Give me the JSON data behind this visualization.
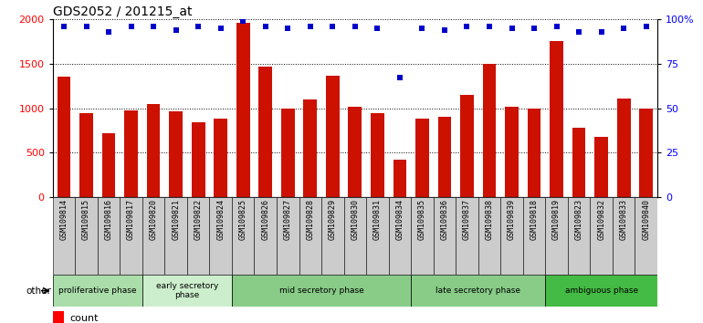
{
  "title": "GDS2052 / 201215_at",
  "samples": [
    "GSM109814",
    "GSM109815",
    "GSM109816",
    "GSM109817",
    "GSM109820",
    "GSM109821",
    "GSM109822",
    "GSM109824",
    "GSM109825",
    "GSM109826",
    "GSM109827",
    "GSM109828",
    "GSM109829",
    "GSM109830",
    "GSM109831",
    "GSM109834",
    "GSM109835",
    "GSM109836",
    "GSM109837",
    "GSM109838",
    "GSM109839",
    "GSM109818",
    "GSM109819",
    "GSM109823",
    "GSM109832",
    "GSM109833",
    "GSM109840"
  ],
  "counts": [
    1360,
    940,
    720,
    980,
    1050,
    960,
    840,
    880,
    1960,
    1470,
    1000,
    1100,
    1370,
    1020,
    940,
    420,
    880,
    900,
    1150,
    1500,
    1020,
    1000,
    1760,
    780,
    680,
    1110,
    1000
  ],
  "percentile_ranks": [
    96,
    96,
    93,
    96,
    96,
    94,
    96,
    95,
    99,
    96,
    95,
    96,
    96,
    96,
    95,
    67,
    95,
    94,
    96,
    96,
    95,
    95,
    96,
    93,
    93,
    95,
    96
  ],
  "phases": [
    {
      "label": "proliferative phase",
      "start": 0,
      "end": 4,
      "color": "#aaddaa"
    },
    {
      "label": "early secretory\nphase",
      "start": 4,
      "end": 8,
      "color": "#cceecc"
    },
    {
      "label": "mid secretory phase",
      "start": 8,
      "end": 16,
      "color": "#88cc88"
    },
    {
      "label": "late secretory phase",
      "start": 16,
      "end": 22,
      "color": "#88cc88"
    },
    {
      "label": "ambiguous phase",
      "start": 22,
      "end": 27,
      "color": "#44bb44"
    }
  ],
  "bar_color": "#CC1100",
  "dot_color": "#0000CC",
  "left_ylim": [
    0,
    2000
  ],
  "right_ylim": [
    0,
    100
  ],
  "left_yticks": [
    0,
    500,
    1000,
    1500,
    2000
  ],
  "right_ytick_vals": [
    0,
    25,
    50,
    75,
    100
  ],
  "right_ytick_labels": [
    "0",
    "25",
    "50",
    "75",
    "100%"
  ],
  "xtick_bg_color": "#cccccc",
  "plot_bg_color": "#ffffff",
  "title_color": "#000000",
  "title_fontsize": 10
}
